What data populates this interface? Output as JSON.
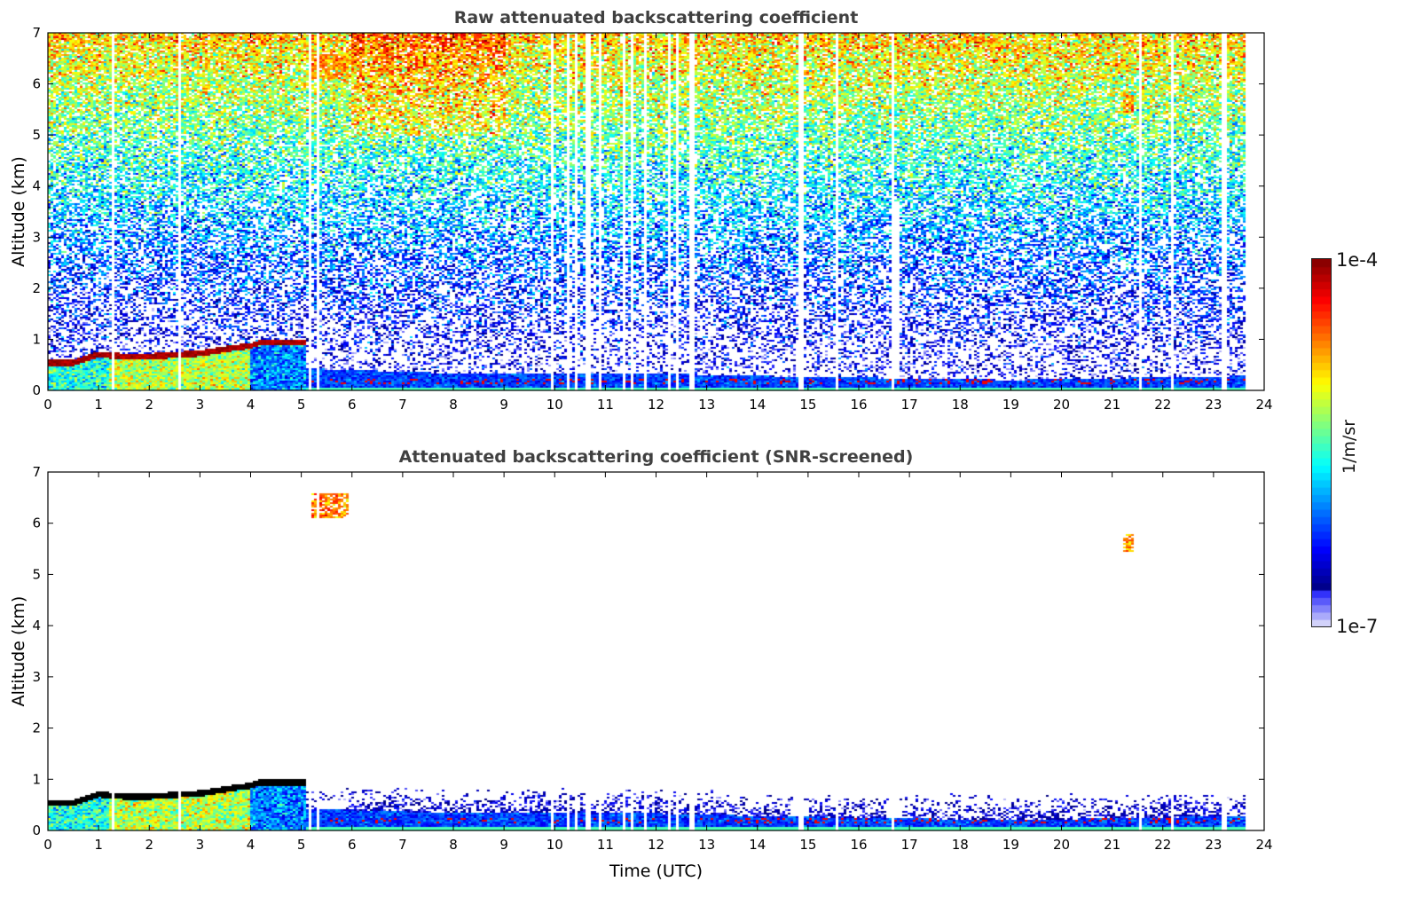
{
  "chart_data": [
    {
      "type": "heatmap",
      "title": "Raw attenuated backscattering coefficient",
      "xlabel": "",
      "ylabel": "Altitude (km)",
      "xlim": [
        0,
        24
      ],
      "ylim": [
        0,
        7
      ],
      "xticks": [
        "0",
        "1",
        "2",
        "3",
        "4",
        "5",
        "6",
        "7",
        "8",
        "9",
        "10",
        "11",
        "12",
        "13",
        "14",
        "15",
        "16",
        "17",
        "18",
        "19",
        "20",
        "21",
        "22",
        "23",
        "24"
      ],
      "yticks": [
        "0",
        "1",
        "2",
        "3",
        "4",
        "5",
        "6",
        "7"
      ],
      "data_end_hour": 23.6,
      "cloud_layer_top_km": [
        [
          0,
          0.62
        ],
        [
          0.5,
          0.62
        ],
        [
          1,
          0.78
        ],
        [
          1.5,
          0.74
        ],
        [
          2,
          0.74
        ],
        [
          3,
          0.8
        ],
        [
          3.6,
          0.9
        ],
        [
          4,
          0.95
        ],
        [
          4.2,
          1.02
        ],
        [
          5,
          1.02
        ]
      ],
      "surface_layer_top_km": [
        [
          5,
          0.45
        ],
        [
          8,
          0.35
        ],
        [
          12,
          0.35
        ],
        [
          14,
          0.3
        ],
        [
          17,
          0.25
        ],
        [
          19,
          0.22
        ],
        [
          23.6,
          0.3
        ]
      ],
      "elevated_cirrus": [
        {
          "t": [
            5.2,
            5.9
          ],
          "alt_km": [
            6.1,
            6.6
          ]
        },
        {
          "t": [
            21.2,
            21.4
          ],
          "alt_km": [
            5.45,
            5.8
          ]
        }
      ],
      "data_gaps_hour": [
        1.3,
        2.6,
        5.15,
        5.3,
        9.95,
        10.25,
        10.4,
        10.65,
        10.9,
        11.35,
        11.5,
        11.8,
        12.25,
        12.4,
        12.7,
        14.85,
        15.55,
        16.65,
        21.55,
        22.2,
        23.2
      ]
    },
    {
      "type": "heatmap",
      "title": "Attenuated backscattering coefficient (SNR-screened)",
      "xlabel": "Time (UTC)",
      "ylabel": "Altitude (km)",
      "xlim": [
        0,
        24
      ],
      "ylim": [
        0,
        7
      ],
      "xticks": [
        "0",
        "1",
        "2",
        "3",
        "4",
        "5",
        "6",
        "7",
        "8",
        "9",
        "10",
        "11",
        "12",
        "13",
        "14",
        "15",
        "16",
        "17",
        "18",
        "19",
        "20",
        "21",
        "22",
        "23",
        "24"
      ],
      "yticks": [
        "0",
        "1",
        "2",
        "3",
        "4",
        "5",
        "6",
        "7"
      ]
    }
  ],
  "colorbar": {
    "label": "1/m/sr",
    "max_label": "1e-4",
    "min_label": "1e-7",
    "scale": "log",
    "range": [
      1e-07,
      0.0001
    ]
  }
}
